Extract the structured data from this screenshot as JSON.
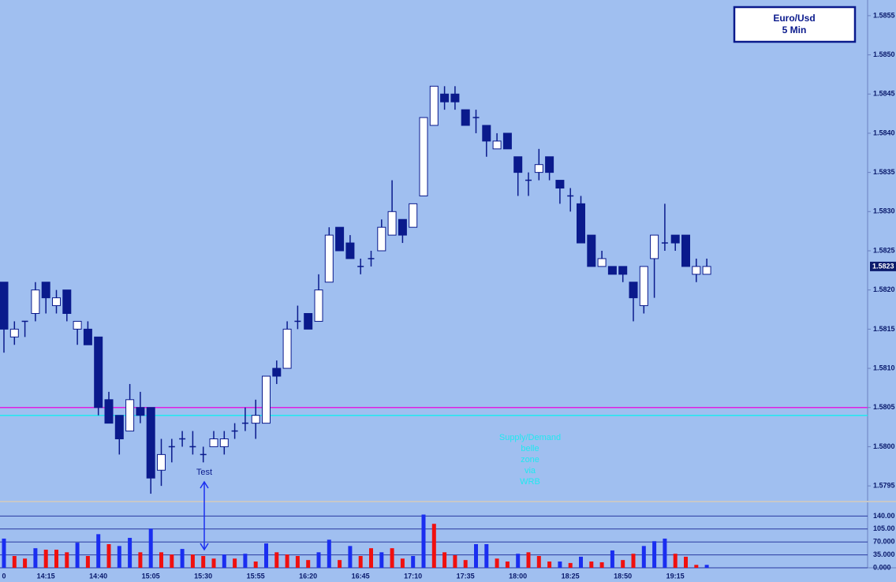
{
  "chart_data": {
    "type": "candlestick",
    "title": "Euro/Usd",
    "subtitle": "5 Min",
    "categories": [
      "0",
      null,
      null,
      null,
      "14:15",
      null,
      null,
      null,
      null,
      "14:40",
      null,
      null,
      null,
      null,
      "15:05",
      null,
      null,
      null,
      null,
      "15:30",
      null,
      null,
      null,
      null,
      "15:55",
      null,
      null,
      null,
      null,
      "16:20",
      null,
      null,
      null,
      null,
      "16:45",
      null,
      null,
      null,
      null,
      "17:10",
      null,
      null,
      null,
      null,
      "17:35",
      null,
      null,
      null,
      null,
      "18:00",
      null,
      null,
      null,
      null,
      "18:25",
      null,
      null,
      null,
      null,
      "18:50",
      null,
      null,
      null,
      null,
      "19:15",
      null,
      null,
      null
    ],
    "open": [
      1.5821,
      1.5814,
      1.5816,
      1.5817,
      1.5821,
      1.5818,
      1.582,
      1.5815,
      1.5815,
      1.5814,
      1.5806,
      1.5804,
      1.5802,
      1.5805,
      1.5805,
      1.5797,
      1.58,
      1.5801,
      1.58,
      1.5799,
      1.58,
      1.58,
      1.5802,
      1.5803,
      1.5803,
      1.5803,
      1.581,
      1.581,
      1.5816,
      1.5817,
      1.5816,
      1.5821,
      1.5828,
      1.5826,
      1.5823,
      1.5824,
      1.5825,
      1.5827,
      1.5829,
      1.5828,
      1.5832,
      1.5841,
      1.5845,
      1.5845,
      1.5843,
      1.5842,
      1.5841,
      1.5838,
      1.584,
      1.5837,
      1.5834,
      1.5835,
      1.5837,
      1.5834,
      1.5832,
      1.5831,
      1.5827,
      1.5823,
      1.5823,
      1.5823,
      1.5821,
      1.5818,
      1.5824,
      1.5826,
      1.5827,
      1.5827,
      1.5822,
      1.5822
    ],
    "high": [
      1.5821,
      1.5816,
      1.5816,
      1.5821,
      1.5821,
      1.582,
      1.582,
      1.5816,
      1.5816,
      1.5814,
      1.5807,
      1.5804,
      1.5808,
      1.5807,
      1.5805,
      1.5801,
      1.5801,
      1.5802,
      1.5802,
      1.58,
      1.5802,
      1.5802,
      1.5803,
      1.5805,
      1.5806,
      1.5809,
      1.5811,
      1.5816,
      1.5818,
      1.5817,
      1.5822,
      1.5828,
      1.5828,
      1.5827,
      1.5824,
      1.5825,
      1.5829,
      1.5834,
      1.5829,
      1.5831,
      1.5842,
      1.5846,
      1.5846,
      1.5846,
      1.5843,
      1.5843,
      1.5841,
      1.584,
      1.584,
      1.5837,
      1.5835,
      1.5838,
      1.5837,
      1.5834,
      1.5833,
      1.5832,
      1.5827,
      1.5825,
      1.5823,
      1.5823,
      1.5821,
      1.5823,
      1.5827,
      1.5831,
      1.5827,
      1.5827,
      1.5824,
      1.5824
    ],
    "low": [
      1.5812,
      1.5813,
      1.5814,
      1.5816,
      1.5817,
      1.5817,
      1.5816,
      1.5813,
      1.5813,
      1.5804,
      1.5803,
      1.5799,
      1.5802,
      1.5803,
      1.5794,
      1.5795,
      1.5798,
      1.58,
      1.5799,
      1.5798,
      1.58,
      1.5799,
      1.5801,
      1.5802,
      1.5801,
      1.5803,
      1.5808,
      1.581,
      1.5815,
      1.5815,
      1.5816,
      1.5821,
      1.5825,
      1.5824,
      1.5822,
      1.5823,
      1.5825,
      1.5827,
      1.5826,
      1.5828,
      1.5832,
      1.5841,
      1.5843,
      1.5843,
      1.5841,
      1.584,
      1.5837,
      1.5838,
      1.5838,
      1.5832,
      1.5832,
      1.5834,
      1.5834,
      1.5831,
      1.583,
      1.5826,
      1.5823,
      1.5823,
      1.5822,
      1.5821,
      1.5816,
      1.5817,
      1.5819,
      1.5825,
      1.5825,
      1.5823,
      1.5821,
      1.5822
    ],
    "close": [
      1.5815,
      1.5815,
      1.5816,
      1.582,
      1.5819,
      1.5819,
      1.5817,
      1.5816,
      1.5813,
      1.5805,
      1.5803,
      1.5801,
      1.5806,
      1.5804,
      1.5796,
      1.5799,
      1.58,
      1.5801,
      1.58,
      1.5799,
      1.5801,
      1.5801,
      1.5802,
      1.5803,
      1.5804,
      1.5809,
      1.5809,
      1.5815,
      1.5816,
      1.5815,
      1.582,
      1.5827,
      1.5825,
      1.5824,
      1.5823,
      1.5824,
      1.5828,
      1.583,
      1.5827,
      1.5831,
      1.5842,
      1.5846,
      1.5844,
      1.5844,
      1.5841,
      1.5842,
      1.5839,
      1.5839,
      1.5838,
      1.5835,
      1.5834,
      1.5836,
      1.5835,
      1.5833,
      1.5832,
      1.5826,
      1.5823,
      1.5824,
      1.5822,
      1.5822,
      1.5819,
      1.5823,
      1.5827,
      1.5826,
      1.5826,
      1.5823,
      1.5823,
      1.5823
    ],
    "up_color": "#ffffff",
    "down_color": "#0a1a8c",
    "ylim": [
      1.5793,
      1.5857
    ],
    "yticks": [
      1.5795,
      {
        "value": 1.58,
        "label": "1.5800"
      },
      1.5805,
      {
        "value": 1.581,
        "label": "1.5810"
      },
      1.5815,
      {
        "value": 1.582,
        "label": "1.5820"
      },
      1.5825,
      {
        "value": 1.583,
        "label": "1.5830"
      },
      1.5835,
      {
        "value": 1.584,
        "label": "1.5840"
      },
      1.5845,
      {
        "value": 1.585,
        "label": "1.5850"
      },
      1.5855
    ],
    "hlines": [
      {
        "value": 1.5805,
        "color": "#e020e0"
      },
      {
        "value": 1.5804,
        "color": "#20e8f0"
      }
    ],
    "volume": {
      "values": [
        79,
        32,
        25,
        53,
        49,
        49,
        42,
        68,
        32,
        91,
        64,
        59,
        81,
        42,
        106,
        42,
        36,
        51,
        36,
        32,
        25,
        36,
        25,
        38,
        17,
        66,
        42,
        36,
        32,
        21,
        42,
        76,
        21,
        59,
        32,
        53,
        42,
        53,
        25,
        32,
        144,
        119,
        42,
        34,
        21,
        64,
        64,
        25,
        17,
        38,
        42,
        32,
        17,
        17,
        13,
        30,
        17,
        15,
        47,
        21,
        38,
        59,
        72,
        79,
        38,
        30,
        8,
        8
      ],
      "colors": [
        "#1a2ef0",
        "#f01010",
        "#f01010",
        "#1a2ef0",
        "#f01010",
        "#f01010",
        "#f01010",
        "#1a2ef0",
        "#f01010",
        "#1a2ef0",
        "#f01010",
        "#1a2ef0",
        "#1a2ef0",
        "#f01010",
        "#1a2ef0",
        "#f01010",
        "#f01010",
        "#1a2ef0",
        "#f01010",
        "#f01010",
        "#f01010",
        "#1a2ef0",
        "#f01010",
        "#1a2ef0",
        "#f01010",
        "#1a2ef0",
        "#f01010",
        "#f01010",
        "#f01010",
        "#f01010",
        "#1a2ef0",
        "#1a2ef0",
        "#f01010",
        "#1a2ef0",
        "#f01010",
        "#f01010",
        "#1a2ef0",
        "#f01010",
        "#f01010",
        "#1a2ef0",
        "#1a2ef0",
        "#f01010",
        "#f01010",
        "#f01010",
        "#f01010",
        "#1a2ef0",
        "#1a2ef0",
        "#f01010",
        "#f01010",
        "#1a2ef0",
        "#f01010",
        "#f01010",
        "#f01010",
        "#1a2ef0",
        "#f01010",
        "#1a2ef0",
        "#f01010",
        "#f01010",
        "#1a2ef0",
        "#f01010",
        "#f01010",
        "#1a2ef0",
        "#1a2ef0",
        "#1a2ef0",
        "#f01010",
        "#f01010",
        "#f01010",
        "#1a2ef0"
      ],
      "ylim": [
        0,
        160
      ],
      "yticks": [
        {
          "value": 0,
          "label": "0.000"
        },
        {
          "value": 35,
          "label": "35.000"
        },
        {
          "value": 70,
          "label": "70.000"
        },
        {
          "value": 105,
          "label": "105.00"
        },
        {
          "value": 140,
          "label": "140.00"
        }
      ]
    },
    "annotation": "Test",
    "notes": [
      "Supply/Demand",
      "belle",
      "zone",
      "via",
      "WRB"
    ]
  }
}
